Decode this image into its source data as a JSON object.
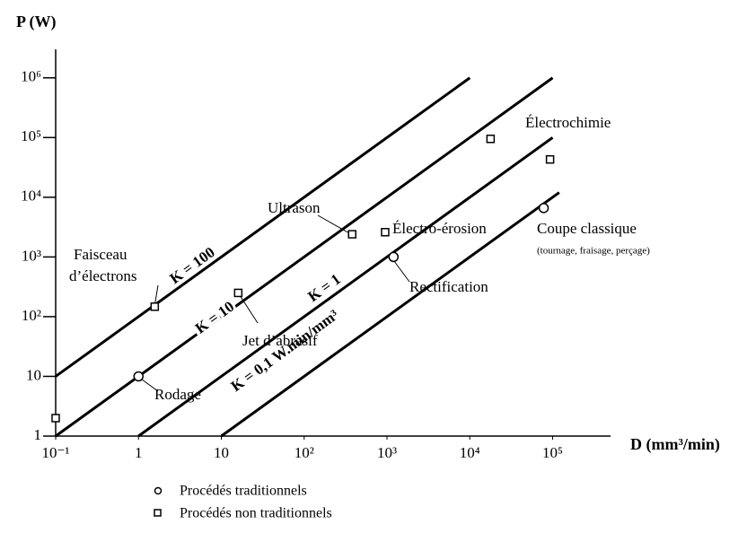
{
  "chart_data": {
    "type": "loglog-lines",
    "x_label": "D (mm³/min)",
    "y_label": "P (W)",
    "log_x": true,
    "log_y": true,
    "xlim": [
      0.1,
      500000
    ],
    "ylim": [
      1,
      3000000
    ],
    "xticks": [
      {
        "value": 0.1,
        "label": "10⁻¹"
      },
      1,
      10,
      {
        "value": 100,
        "label": "10²"
      },
      {
        "value": 1000,
        "label": "10³"
      },
      {
        "value": 10000,
        "label": "10⁴"
      },
      {
        "value": 100000,
        "label": "10⁵"
      }
    ],
    "yticks": [
      1,
      10,
      {
        "value": 100,
        "label": "10²"
      },
      {
        "value": 1000,
        "label": "10³"
      },
      {
        "value": 10000,
        "label": "10⁴"
      },
      {
        "value": 100000,
        "label": "10⁵"
      },
      {
        "value": 1000000,
        "label": "10⁶"
      }
    ],
    "lines": [
      {
        "label": "K = 100",
        "x": [
          0.1,
          10000
        ],
        "values": [
          10,
          1000000
        ]
      },
      {
        "label": "K = 10",
        "x": [
          0.1,
          100000
        ],
        "values": [
          1,
          1000000
        ]
      },
      {
        "label": "K = 1",
        "x": [
          1,
          100000
        ],
        "values": [
          1,
          100000
        ]
      },
      {
        "label": "K = 0,1 W.min/mm³",
        "x": [
          10,
          120000
        ],
        "values": [
          1,
          12000
        ]
      }
    ],
    "series": [
      {
        "name": "Procédés traditionnels",
        "marker": "circle",
        "points": [
          {
            "label": [
              "Rodage"
            ],
            "x": 1,
            "y": 10
          },
          {
            "label": [
              "Rectification"
            ],
            "x": 1200,
            "y": 1000
          },
          {
            "label": [
              "Coupe classique"
            ],
            "note": "(tournage, fraisage, perçage)",
            "x": 78000,
            "y": 6600
          }
        ]
      },
      {
        "name": "Procédés non traditionnels",
        "marker": "square",
        "points": [
          {
            "x": 0.1,
            "y": 2
          },
          {
            "label": [
              "Faisceau",
              "d’électrons"
            ],
            "x": 1.57,
            "y": 147
          },
          {
            "label": [
              "Jet d’abrasif"
            ],
            "x": 16,
            "y": 250
          },
          {
            "label": [
              "Ultrason"
            ],
            "x": 380,
            "y": 2400
          },
          {
            "label": [
              "Électro-érosion"
            ],
            "x": 950,
            "y": 2600
          },
          {
            "label": [
              "Électrochimie"
            ],
            "x": 17800,
            "y": 95000
          },
          {
            "x": 93000,
            "y": 43000
          }
        ]
      }
    ]
  }
}
